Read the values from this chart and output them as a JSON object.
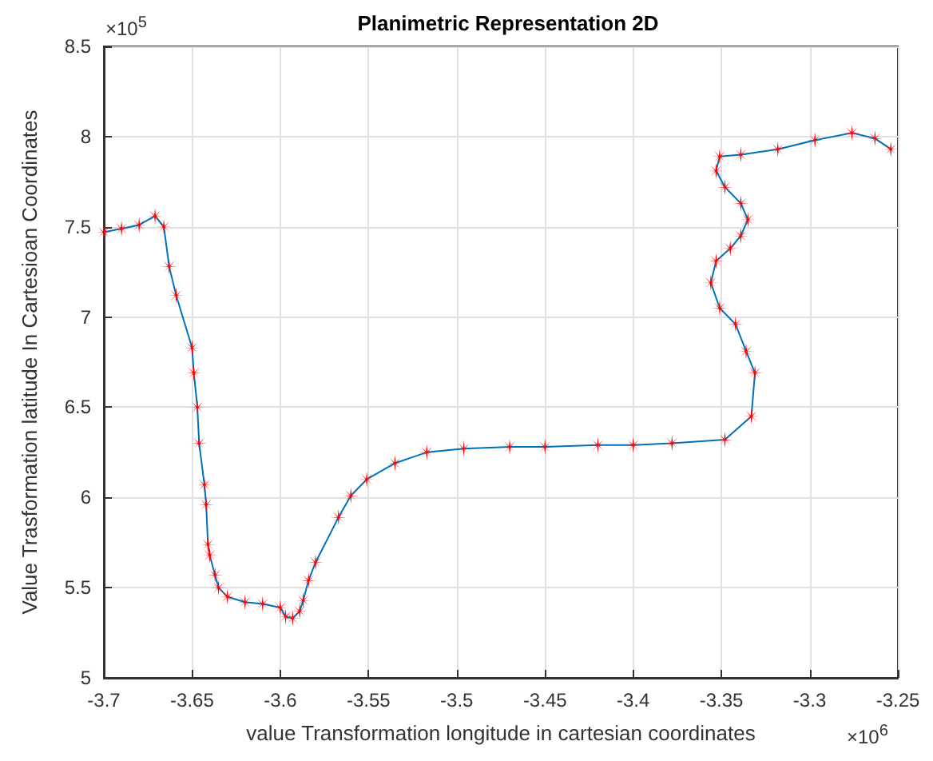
{
  "chart_data": {
    "type": "line",
    "title": "Planimetric Representation 2D",
    "xlabel": "value Transformation longitude in cartesian coordinates",
    "ylabel": "Value Trasformation latitude In Cartesioan Coordinates",
    "annotations": [
      "×10$^{6}$",
      "×10$^{5}$"
    ],
    "xlim": [
      -3.7,
      -3.25
    ],
    "xticks": [
      -3.7,
      -3.65,
      -3.6,
      -3.55,
      -3.5,
      -3.45,
      -3.4,
      -3.35,
      -3.3,
      -3.25
    ],
    "ylim": [
      5,
      8.5
    ],
    "yticks": [
      5,
      5.5,
      6,
      6.5,
      7,
      7.5,
      8,
      8.5
    ],
    "grid": true,
    "marker": "star",
    "line_style": "solid",
    "x": [
      -3.7,
      -3.69,
      -3.68,
      -3.671,
      -3.666,
      -3.663,
      -3.659,
      -3.65,
      -3.649,
      -3.647,
      -3.646,
      -3.643,
      -3.642,
      -3.641,
      -3.64,
      -3.637,
      -3.635,
      -3.63,
      -3.62,
      -3.61,
      -3.6,
      -3.597,
      -3.593,
      -3.589,
      -3.587,
      -3.584,
      -3.58,
      -3.567,
      -3.56,
      -3.551,
      -3.535,
      -3.517,
      -3.496,
      -3.47,
      -3.45,
      -3.42,
      -3.4,
      -3.378,
      -3.348,
      -3.333,
      -3.331,
      -3.336,
      -3.342,
      -3.351,
      -3.356,
      -3.353,
      -3.345,
      -3.339,
      -3.335,
      -3.339,
      -3.348,
      -3.353,
      -3.351,
      -3.339,
      -3.318,
      -3.297,
      -3.276,
      -3.263,
      -3.254
    ],
    "series": [
      {
        "color": "#0072bd",
        "colors": [
          "#ff0000",
          "#ff0000",
          "#ff0000",
          "#ff0000",
          "#ff0000",
          "#ff0000",
          "#ff0000",
          "#ff0000",
          "#ff0000",
          "#ff0000",
          "#ff0000",
          "#ff0000",
          "#ff0000",
          "#ff0000",
          "#ff0000",
          "#ff0000",
          "#ff0000",
          "#ff0000",
          "#ff0000",
          "#ff0000",
          "#ff0000",
          "#ff0000",
          "#ff0000",
          "#ff0000",
          "#ff0000",
          "#ff0000",
          "#ff0000",
          "#ff0000",
          "#ff0000",
          "#ff0000",
          "#ff0000",
          "#ff0000",
          "#ff0000",
          "#ff0000",
          "#ff0000",
          "#ff0000",
          "#ff0000",
          "#ff0000",
          "#ff0000",
          "#ff0000",
          "#ff0000",
          "#ff0000",
          "#ff0000",
          "#ff0000",
          "#ff0000",
          "#ff0000",
          "#ff0000",
          "#ff0000",
          "#ff0000",
          "#ff0000",
          "#ff0000",
          "#ff0000",
          "#ff0000",
          "#ff0000",
          "#ff0000",
          "#ff0000",
          "#ff0000",
          "#ff0000",
          "#ff0000"
        ],
        "values": [
          7.47,
          7.49,
          7.51,
          7.56,
          7.5,
          7.28,
          7.12,
          6.83,
          6.69,
          6.5,
          6.3,
          6.07,
          5.96,
          5.74,
          5.68,
          5.57,
          5.5,
          5.45,
          5.42,
          5.41,
          5.39,
          5.34,
          5.33,
          5.37,
          5.43,
          5.54,
          5.64,
          5.89,
          6.01,
          6.1,
          6.19,
          6.25,
          6.27,
          6.28,
          6.28,
          6.29,
          6.29,
          6.3,
          6.32,
          6.45,
          6.69,
          6.81,
          6.96,
          7.05,
          7.19,
          7.31,
          7.38,
          7.45,
          7.54,
          7.63,
          7.72,
          7.81,
          7.89,
          7.9,
          7.93,
          7.98,
          8.02,
          7.99,
          7.93
        ]
      }
    ]
  }
}
